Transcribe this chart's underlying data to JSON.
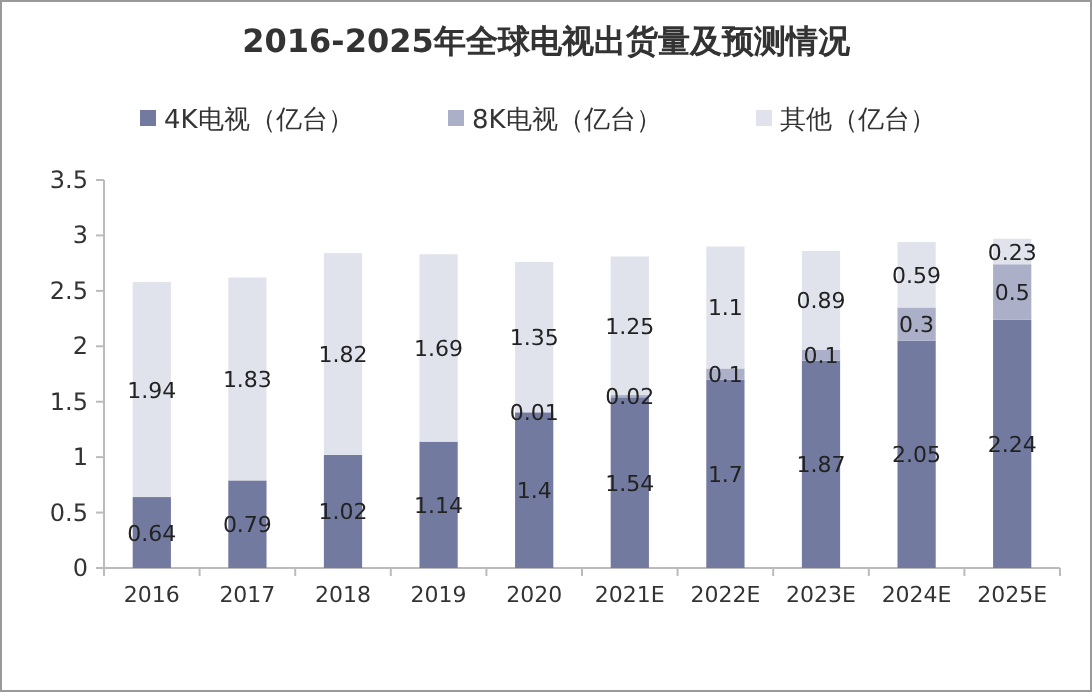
{
  "chart_data": {
    "type": "bar",
    "title": "2016-2025年全球电视出货量及预测情况",
    "categories": [
      "2016",
      "2017",
      "2018",
      "2019",
      "2020",
      "2021E",
      "2022E",
      "2023E",
      "2024E",
      "2025E"
    ],
    "stacked": true,
    "data_labels": true,
    "legend": "top",
    "grid": false,
    "ylim": [
      0,
      3.5
    ],
    "yticks": [
      0,
      0.5,
      1,
      1.5,
      2,
      2.5,
      3,
      3.5
    ],
    "series": [
      {
        "name": "4K电视（亿台）",
        "color": "#737aa0",
        "values": [
          0.64,
          0.79,
          1.02,
          1.14,
          1.4,
          1.54,
          1.7,
          1.87,
          2.05,
          2.24
        ]
      },
      {
        "name": "8K电视（亿台）",
        "color": "#abafc8",
        "values": [
          null,
          null,
          null,
          null,
          0.01,
          0.02,
          0.1,
          0.1,
          0.3,
          0.5
        ]
      },
      {
        "name": "其他（亿台）",
        "color": "#e1e3ec",
        "values": [
          1.94,
          1.83,
          1.82,
          1.69,
          1.35,
          1.25,
          1.1,
          0.89,
          0.59,
          0.23
        ]
      }
    ]
  }
}
